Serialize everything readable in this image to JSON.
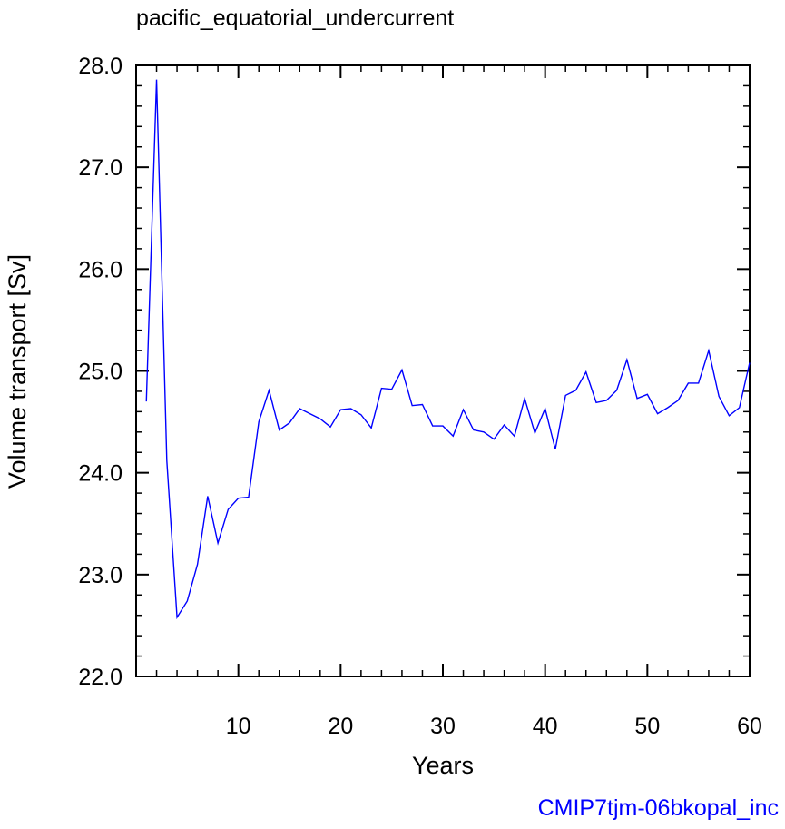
{
  "chart_data": {
    "type": "line",
    "title": "pacific_equatorial_undercurrent",
    "xlabel": "Years",
    "ylabel": "Volume transport [Sv]",
    "xlim": [
      0,
      60
    ],
    "ylim": [
      22.0,
      28.0
    ],
    "x_major_ticks": [
      10,
      20,
      30,
      40,
      50,
      60
    ],
    "x_tick_labels": [
      "10",
      "20",
      "30",
      "40",
      "50",
      "60"
    ],
    "y_major_ticks": [
      22.0,
      23.0,
      24.0,
      25.0,
      26.0,
      27.0,
      28.0
    ],
    "y_tick_labels": [
      "22.0",
      "23.0",
      "24.0",
      "25.0",
      "26.0",
      "27.0",
      "28.0"
    ],
    "grid": false,
    "line_color": "#0000ff",
    "series": [
      {
        "x": [
          1,
          2,
          3,
          4,
          5,
          6,
          7,
          8,
          9,
          10,
          11,
          12,
          13,
          14,
          15,
          16,
          17,
          18,
          19,
          20,
          21,
          22,
          23,
          24,
          25,
          26,
          27,
          28,
          29,
          30,
          31,
          32,
          33,
          34,
          35,
          36,
          37,
          38,
          39,
          40,
          41,
          42,
          43,
          44,
          45,
          46,
          47,
          48,
          49,
          50,
          51,
          52,
          53,
          54,
          55,
          56,
          57,
          58,
          59,
          60
        ],
        "values": [
          24.7,
          27.86,
          24.12,
          22.58,
          22.74,
          23.1,
          23.77,
          23.31,
          23.64,
          23.75,
          23.76,
          24.5,
          24.81,
          24.42,
          24.49,
          24.63,
          24.58,
          24.53,
          24.45,
          24.62,
          24.63,
          24.57,
          24.44,
          24.83,
          24.82,
          25.01,
          24.66,
          24.67,
          24.46,
          24.46,
          24.36,
          24.62,
          24.42,
          24.4,
          24.33,
          24.47,
          24.36,
          24.73,
          24.39,
          24.63,
          24.23,
          24.76,
          24.81,
          24.99,
          24.69,
          24.71,
          24.81,
          25.11,
          24.73,
          24.77,
          24.58,
          24.64,
          24.71,
          24.88,
          24.88,
          25.2,
          24.75,
          24.56,
          24.64,
          25.08
        ]
      }
    ]
  },
  "corner_label": {
    "text": "CMIP7tjm-06bkopal_inc",
    "color": "#0000ff"
  }
}
